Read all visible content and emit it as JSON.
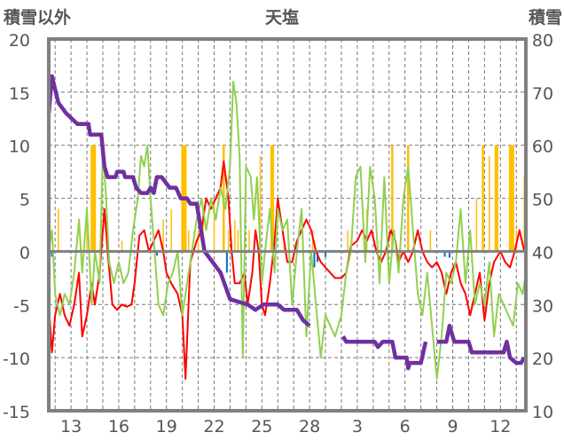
{
  "chart_data": {
    "type": "line",
    "title": "天塩",
    "ylabel_left": "積雪以外",
    "ylabel_right": "積雪",
    "ylim_left": [
      -15,
      20
    ],
    "ylim_right": [
      10,
      80
    ],
    "yticks_left": [
      "20",
      "15",
      "10",
      "5",
      "0",
      "-5",
      "-10",
      "-15"
    ],
    "yticks_right": [
      "80",
      "70",
      "60",
      "50",
      "40",
      "30",
      "20",
      "10"
    ],
    "xlim_days": [
      11.6,
      41.6
    ],
    "xtick_labels": [
      {
        "day": 13,
        "label": "13"
      },
      {
        "day": 16,
        "label": "16"
      },
      {
        "day": 19,
        "label": "19"
      },
      {
        "day": 22,
        "label": "22"
      },
      {
        "day": 25,
        "label": "25"
      },
      {
        "day": 28,
        "label": "28"
      },
      {
        "day": 31,
        "label": "3"
      },
      {
        "day": 34,
        "label": "6"
      },
      {
        "day": 37,
        "label": "9"
      },
      {
        "day": 40,
        "label": "12"
      }
    ],
    "grid": true,
    "colors": {
      "temp": "#ff0000",
      "wind": "#92d050",
      "snow": "#7030a0",
      "precip": "#ffc000",
      "neg": "#0070c0",
      "frame": "#808080"
    },
    "series": [
      {
        "name": "temperature",
        "axis": "left",
        "color": "#ff0000",
        "points": [
          [
            11.6,
            -5
          ],
          [
            11.8,
            -9.5
          ],
          [
            12.0,
            -6
          ],
          [
            12.3,
            -4
          ],
          [
            12.6,
            -6
          ],
          [
            12.9,
            -7
          ],
          [
            13.2,
            -5
          ],
          [
            13.5,
            -2
          ],
          [
            13.7,
            -8
          ],
          [
            14.0,
            -6
          ],
          [
            14.3,
            -3
          ],
          [
            14.5,
            -5
          ],
          [
            14.8,
            -2
          ],
          [
            15.0,
            2
          ],
          [
            15.1,
            4
          ],
          [
            15.3,
            0
          ],
          [
            15.6,
            -5
          ],
          [
            15.9,
            -5.5
          ],
          [
            16.2,
            -5
          ],
          [
            16.5,
            -5.2
          ],
          [
            16.8,
            -5
          ],
          [
            17.0,
            -3
          ],
          [
            17.3,
            1.5
          ],
          [
            17.6,
            2
          ],
          [
            17.9,
            0
          ],
          [
            18.2,
            1
          ],
          [
            18.5,
            2
          ],
          [
            18.8,
            0
          ],
          [
            19.0,
            -2
          ],
          [
            19.3,
            -3
          ],
          [
            19.7,
            -4
          ],
          [
            20.0,
            -6
          ],
          [
            20.2,
            -12
          ],
          [
            20.5,
            -1
          ],
          [
            20.9,
            1
          ],
          [
            21.2,
            2
          ],
          [
            21.5,
            5
          ],
          [
            21.8,
            4
          ],
          [
            22.1,
            5
          ],
          [
            22.4,
            6
          ],
          [
            22.6,
            8.5
          ],
          [
            22.9,
            5
          ],
          [
            23.1,
            0
          ],
          [
            23.3,
            -3
          ],
          [
            23.6,
            -3
          ],
          [
            23.9,
            -2
          ],
          [
            24.1,
            -5
          ],
          [
            24.4,
            -2
          ],
          [
            24.6,
            2
          ],
          [
            24.8,
            0
          ],
          [
            25.0,
            -5
          ],
          [
            25.2,
            -6
          ],
          [
            25.5,
            -3
          ],
          [
            25.8,
            1
          ],
          [
            26.0,
            5
          ],
          [
            26.3,
            2
          ],
          [
            26.6,
            -1
          ],
          [
            26.9,
            -1
          ],
          [
            27.2,
            1
          ],
          [
            27.5,
            2
          ],
          [
            27.8,
            3
          ],
          [
            28.1,
            2
          ],
          [
            28.4,
            0
          ],
          [
            28.7,
            -1
          ],
          [
            29.0,
            -1.5
          ],
          [
            29.3,
            -2
          ],
          [
            29.6,
            -2.5
          ],
          [
            30.0,
            -2.5
          ],
          [
            30.3,
            -2
          ],
          [
            30.6,
            0.5
          ],
          [
            31.0,
            1
          ],
          [
            31.3,
            2
          ],
          [
            31.6,
            1
          ],
          [
            31.9,
            2
          ],
          [
            32.2,
            0
          ],
          [
            32.5,
            -1
          ],
          [
            32.8,
            0
          ],
          [
            33.1,
            2
          ],
          [
            33.4,
            1
          ],
          [
            33.6,
            -1
          ],
          [
            33.9,
            0
          ],
          [
            34.2,
            -1
          ],
          [
            34.5,
            0
          ],
          [
            34.8,
            2
          ],
          [
            35.1,
            0
          ],
          [
            35.4,
            -1
          ],
          [
            35.7,
            -1.5
          ],
          [
            36.0,
            -1
          ],
          [
            36.3,
            -2
          ],
          [
            36.6,
            -4
          ],
          [
            36.9,
            -2
          ],
          [
            37.2,
            -1
          ],
          [
            37.5,
            -3
          ],
          [
            37.8,
            -4
          ],
          [
            38.1,
            -6
          ],
          [
            38.4,
            -4
          ],
          [
            38.7,
            -2
          ],
          [
            39.0,
            -6.5
          ],
          [
            39.3,
            -3
          ],
          [
            39.6,
            -1
          ],
          [
            40.0,
            0
          ],
          [
            40.3,
            -1
          ],
          [
            40.6,
            -1.5
          ],
          [
            40.9,
            0
          ],
          [
            41.2,
            2
          ],
          [
            41.5,
            0
          ]
        ]
      },
      {
        "name": "wind",
        "axis": "left",
        "color": "#92d050",
        "points": [
          [
            11.6,
            0
          ],
          [
            11.8,
            2
          ],
          [
            12.0,
            -4
          ],
          [
            12.3,
            -6
          ],
          [
            12.6,
            -4
          ],
          [
            12.9,
            -5
          ],
          [
            13.2,
            -2
          ],
          [
            13.5,
            3
          ],
          [
            13.7,
            -2
          ],
          [
            14.0,
            4
          ],
          [
            14.3,
            -5
          ],
          [
            14.5,
            0
          ],
          [
            14.8,
            -3
          ],
          [
            15.0,
            10
          ],
          [
            15.2,
            5
          ],
          [
            15.4,
            -1
          ],
          [
            15.7,
            -3
          ],
          [
            16.0,
            -1
          ],
          [
            16.3,
            -3
          ],
          [
            16.6,
            -2
          ],
          [
            16.9,
            2
          ],
          [
            17.2,
            5
          ],
          [
            17.4,
            9
          ],
          [
            17.6,
            8
          ],
          [
            17.8,
            10
          ],
          [
            18.0,
            5
          ],
          [
            18.3,
            -1
          ],
          [
            18.5,
            -5
          ],
          [
            18.8,
            -6
          ],
          [
            19.1,
            -3
          ],
          [
            19.4,
            -2
          ],
          [
            19.7,
            0
          ],
          [
            20.0,
            -6
          ],
          [
            20.3,
            -3
          ],
          [
            20.6,
            0
          ],
          [
            20.9,
            3
          ],
          [
            21.2,
            5
          ],
          [
            21.5,
            2
          ],
          [
            21.8,
            5
          ],
          [
            22.1,
            3
          ],
          [
            22.4,
            6
          ],
          [
            22.7,
            4
          ],
          [
            23.0,
            8
          ],
          [
            23.2,
            16
          ],
          [
            23.4,
            14
          ],
          [
            23.6,
            9
          ],
          [
            23.8,
            -10
          ],
          [
            24.0,
            8
          ],
          [
            24.3,
            7
          ],
          [
            24.5,
            3
          ],
          [
            24.7,
            7
          ],
          [
            25.0,
            -3
          ],
          [
            25.2,
            0
          ],
          [
            25.5,
            4
          ],
          [
            25.8,
            -2
          ],
          [
            26.0,
            4
          ],
          [
            26.3,
            2
          ],
          [
            26.6,
            3
          ],
          [
            26.9,
            -5
          ],
          [
            27.2,
            0
          ],
          [
            27.5,
            4
          ],
          [
            27.8,
            -8
          ],
          [
            28.1,
            0
          ],
          [
            28.4,
            -5
          ],
          [
            28.7,
            -10
          ],
          [
            29.0,
            -6
          ],
          [
            29.3,
            -7
          ],
          [
            29.6,
            -8
          ],
          [
            30.0,
            -6
          ],
          [
            30.3,
            -2
          ],
          [
            30.6,
            0
          ],
          [
            30.9,
            7
          ],
          [
            31.2,
            8
          ],
          [
            31.5,
            -1
          ],
          [
            31.8,
            8
          ],
          [
            32.1,
            5
          ],
          [
            32.4,
            -3
          ],
          [
            32.7,
            7
          ],
          [
            33.0,
            -3
          ],
          [
            33.3,
            2
          ],
          [
            33.6,
            -2
          ],
          [
            33.9,
            5
          ],
          [
            34.2,
            8
          ],
          [
            34.5,
            2
          ],
          [
            34.8,
            -4
          ],
          [
            35.1,
            -6
          ],
          [
            35.4,
            -2
          ],
          [
            35.7,
            -7
          ],
          [
            36.0,
            -12
          ],
          [
            36.3,
            -8
          ],
          [
            36.6,
            -2
          ],
          [
            36.9,
            -3
          ],
          [
            37.2,
            -1
          ],
          [
            37.5,
            4
          ],
          [
            37.8,
            -3
          ],
          [
            38.1,
            2
          ],
          [
            38.4,
            -5
          ],
          [
            38.7,
            -3
          ],
          [
            39.0,
            -5
          ],
          [
            39.3,
            -1
          ],
          [
            39.6,
            -8
          ],
          [
            39.9,
            -4
          ],
          [
            40.2,
            -5
          ],
          [
            40.5,
            -6
          ],
          [
            40.8,
            -7
          ],
          [
            41.1,
            -3
          ],
          [
            41.4,
            -4
          ],
          [
            41.6,
            -2
          ]
        ]
      },
      {
        "name": "snow_depth",
        "axis": "right",
        "color": "#7030a0",
        "points": [
          [
            11.6,
            66
          ],
          [
            11.8,
            73
          ],
          [
            12.2,
            68
          ],
          [
            12.7,
            66
          ],
          [
            13.4,
            64
          ],
          [
            14.1,
            64
          ],
          [
            14.2,
            62
          ],
          [
            14.9,
            62
          ],
          [
            15.1,
            56
          ],
          [
            15.3,
            54
          ],
          [
            15.8,
            54
          ],
          [
            15.9,
            55
          ],
          [
            16.3,
            55
          ],
          [
            16.4,
            54
          ],
          [
            16.9,
            54
          ],
          [
            17.1,
            52
          ],
          [
            17.4,
            51
          ],
          [
            17.8,
            51
          ],
          [
            18.0,
            52
          ],
          [
            18.2,
            51
          ],
          [
            18.4,
            54
          ],
          [
            18.7,
            54
          ],
          [
            19.2,
            52
          ],
          [
            19.6,
            52
          ],
          [
            19.9,
            50
          ],
          [
            20.3,
            50
          ],
          [
            20.5,
            49
          ],
          [
            20.9,
            49
          ],
          [
            21.4,
            40
          ],
          [
            22.4,
            36
          ],
          [
            23.0,
            31
          ],
          [
            24.1,
            30
          ],
          [
            24.6,
            29
          ],
          [
            25.1,
            30
          ],
          [
            26.0,
            30
          ],
          [
            26.4,
            29
          ],
          [
            27.2,
            29
          ],
          [
            27.6,
            27
          ],
          [
            28.0,
            26
          ],
          [
            28.0,
            null
          ],
          [
            30.1,
            24
          ],
          [
            30.3,
            23
          ],
          [
            32.1,
            23
          ],
          [
            32.3,
            22
          ],
          [
            32.6,
            23
          ],
          [
            33.2,
            23
          ],
          [
            33.4,
            20
          ],
          [
            34.1,
            20
          ],
          [
            34.2,
            18
          ],
          [
            34.3,
            19
          ],
          [
            35.0,
            19
          ],
          [
            35.3,
            23
          ],
          [
            35.3,
            null
          ],
          [
            36.0,
            23
          ],
          [
            36.6,
            23
          ],
          [
            36.8,
            26
          ],
          [
            37.1,
            23
          ],
          [
            38.0,
            23
          ],
          [
            38.2,
            21
          ],
          [
            40.2,
            21
          ],
          [
            40.4,
            23
          ],
          [
            40.6,
            20
          ],
          [
            41.0,
            19
          ],
          [
            41.3,
            19
          ],
          [
            41.5,
            20
          ]
        ]
      }
    ],
    "bars_precip": [
      [
        12.2,
        4
      ],
      [
        13.6,
        1
      ],
      [
        14.0,
        3
      ],
      [
        14.3,
        10
      ],
      [
        14.4,
        10
      ],
      [
        14.5,
        10
      ],
      [
        16.2,
        1
      ],
      [
        18.8,
        3
      ],
      [
        19.3,
        4
      ],
      [
        20.0,
        10
      ],
      [
        20.1,
        10
      ],
      [
        20.2,
        10
      ],
      [
        20.4,
        2
      ],
      [
        21.0,
        2
      ],
      [
        21.3,
        4
      ],
      [
        22.0,
        5
      ],
      [
        22.6,
        10
      ],
      [
        22.9,
        2
      ],
      [
        23.3,
        3
      ],
      [
        23.5,
        2
      ],
      [
        24.2,
        2
      ],
      [
        24.9,
        9
      ],
      [
        25.6,
        10
      ],
      [
        25.7,
        10
      ],
      [
        26.4,
        1
      ],
      [
        28.2,
        2
      ],
      [
        30.4,
        2
      ],
      [
        31.6,
        4
      ],
      [
        33.2,
        10
      ],
      [
        34.2,
        10
      ],
      [
        35.6,
        2
      ],
      [
        38.5,
        5
      ],
      [
        38.9,
        10
      ],
      [
        39.3,
        9
      ],
      [
        39.7,
        10
      ],
      [
        39.8,
        10
      ],
      [
        40.6,
        10
      ],
      [
        40.7,
        10
      ],
      [
        40.8,
        10
      ],
      [
        41.0,
        2
      ],
      [
        41.5,
        7
      ]
    ],
    "bars_negative": [
      [
        11.8,
        -0.5
      ],
      [
        18.4,
        -0.4
      ],
      [
        22.8,
        -2
      ],
      [
        28.3,
        -1.5
      ],
      [
        28.5,
        -1
      ],
      [
        29.0,
        -0.5
      ],
      [
        36.5,
        -0.5
      ],
      [
        36.8,
        -0.6
      ]
    ]
  }
}
